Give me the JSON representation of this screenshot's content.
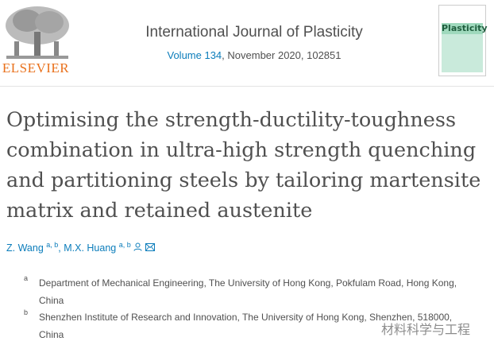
{
  "publisher": {
    "logo_text": "ELSEVIER"
  },
  "journal": {
    "title": "International Journal of Plasticity",
    "volume_link": "Volume 134",
    "volume_rest": ", November 2020, 102851",
    "cover_text": "Plasticity",
    "cover_color": "#9fd9bd"
  },
  "article": {
    "title": "Optimising the strength-ductility-toughness combination in ultra-high strength quenching and partitioning steels by tailoring martensite matrix and retained austenite"
  },
  "authors": [
    {
      "name": "Z. Wang",
      "sup": "a, b"
    },
    {
      "name": "M.X. Huang",
      "sup": "a, b"
    }
  ],
  "author_sep": ", ",
  "icons": [
    "person-icon",
    "envelope-icon"
  ],
  "affiliations": [
    {
      "label": "a",
      "text": "Department of Mechanical Engineering, The University of Hong Kong, Pokfulam Road, Hong Kong, China"
    },
    {
      "label": "b",
      "text": "Shenzhen Institute of Research and Innovation, The University of Hong Kong, Shenzhen, 518000, China"
    }
  ],
  "watermark": "材料科学与工程",
  "colors": {
    "link": "#0c7dbb",
    "text": "#505050",
    "elsevier_orange": "#e9711c"
  }
}
